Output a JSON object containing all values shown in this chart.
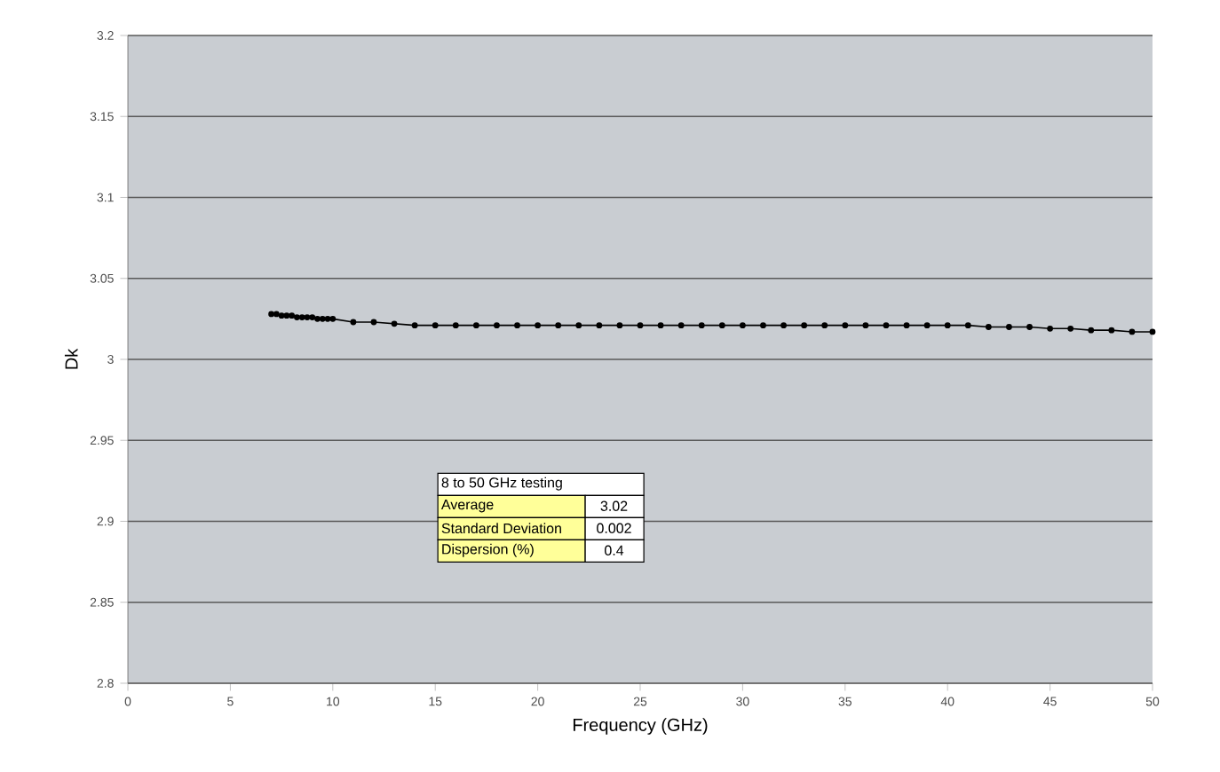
{
  "chart_data": {
    "type": "line",
    "xlabel": "Frequency (GHz)",
    "ylabel": "Dk",
    "x": [
      7,
      7.25,
      7.5,
      7.75,
      8,
      8.25,
      8.5,
      8.75,
      9,
      9.25,
      9.5,
      9.75,
      10,
      11,
      12,
      13,
      14,
      15,
      16,
      17,
      18,
      19,
      20,
      21,
      22,
      23,
      24,
      25,
      26,
      27,
      28,
      29,
      30,
      31,
      32,
      33,
      34,
      35,
      36,
      37,
      38,
      39,
      40,
      41,
      42,
      43,
      44,
      45,
      46,
      47,
      48,
      49,
      50
    ],
    "series": [
      {
        "color": "#000000",
        "values": [
          3.028,
          3.028,
          3.027,
          3.027,
          3.027,
          3.026,
          3.026,
          3.026,
          3.026,
          3.025,
          3.025,
          3.025,
          3.025,
          3.023,
          3.023,
          3.022,
          3.021,
          3.021,
          3.021,
          3.021,
          3.021,
          3.021,
          3.021,
          3.021,
          3.021,
          3.021,
          3.021,
          3.021,
          3.021,
          3.021,
          3.021,
          3.021,
          3.021,
          3.021,
          3.021,
          3.021,
          3.021,
          3.021,
          3.021,
          3.021,
          3.021,
          3.021,
          3.021,
          3.021,
          3.02,
          3.02,
          3.02,
          3.019,
          3.019,
          3.018,
          3.018,
          3.017,
          3.017
        ]
      }
    ],
    "xlim": [
      0,
      50
    ],
    "xticks": [
      0,
      5,
      10,
      15,
      20,
      25,
      30,
      35,
      40,
      45,
      50
    ],
    "ylim": [
      2.8,
      3.2
    ],
    "yticks": [
      2.8,
      2.85,
      2.9,
      2.95,
      3,
      3.05,
      3.1,
      3.15,
      3.2
    ],
    "grid": "y",
    "marker": "circle",
    "line_style": "solid",
    "annotations": [
      "8 to 50 GHz testing",
      "Average",
      "3.02",
      "Standard Deviation",
      "0.002",
      "Dispersion (%)",
      "0.4"
    ]
  }
}
